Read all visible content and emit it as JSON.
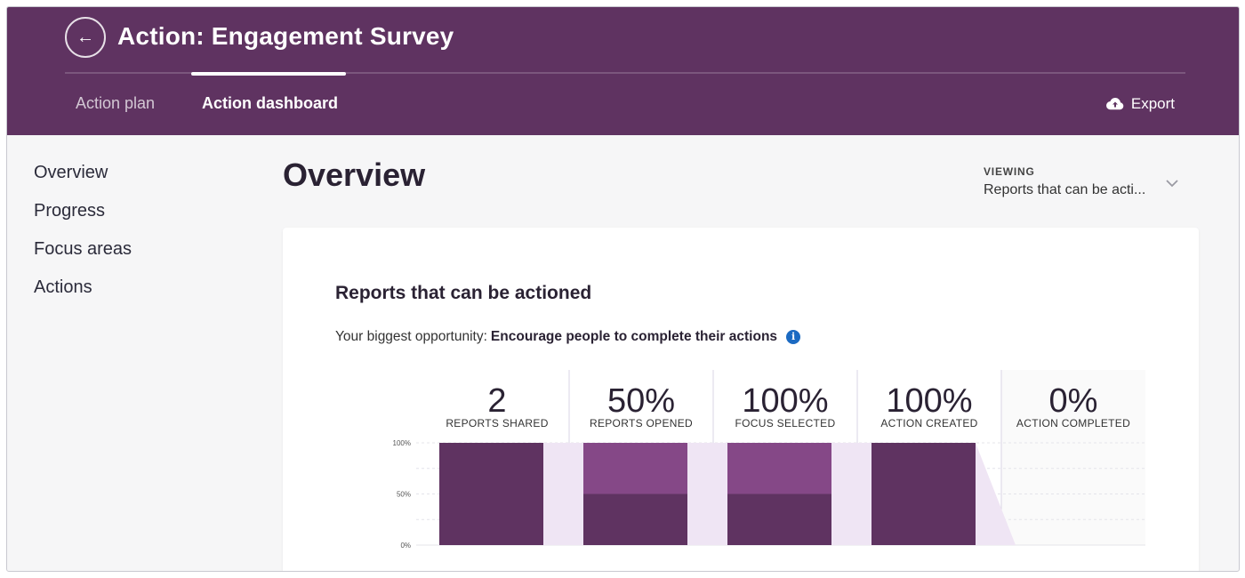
{
  "header": {
    "title": "Action: Engagement Survey",
    "tabs": [
      {
        "label": "Action plan",
        "active": false
      },
      {
        "label": "Action dashboard",
        "active": true
      }
    ],
    "export_label": "Export"
  },
  "sidebar": {
    "items": [
      {
        "label": "Overview"
      },
      {
        "label": "Progress"
      },
      {
        "label": "Focus areas"
      },
      {
        "label": "Actions"
      }
    ]
  },
  "main": {
    "page_title": "Overview",
    "viewing": {
      "label": "VIEWING",
      "value": "Reports that can be acti..."
    }
  },
  "card": {
    "title": "Reports that can be actioned",
    "opportunity_prefix": "Your biggest opportunity:",
    "opportunity_text": "Encourage people to complete their actions"
  },
  "colors": {
    "header": "#5f3361",
    "bar_dark": "#5f3361",
    "bar_light": "#854887",
    "funnel": "#efe5f4",
    "info": "#1b6ac2"
  },
  "chart_data": {
    "type": "bar",
    "categories": [
      "REPORTS SHARED",
      "REPORTS OPENED",
      "FOCUS SELECTED",
      "ACTION CREATED",
      "ACTION COMPLETED"
    ],
    "headline_values": [
      "2",
      "50%",
      "100%",
      "100%",
      "0%"
    ],
    "series": [
      {
        "values": [
          100,
          50,
          50,
          100,
          0
        ]
      },
      {
        "values": [
          0,
          50,
          50,
          0,
          0
        ]
      }
    ],
    "yticks": [
      "100%",
      "50%",
      "0%"
    ],
    "ylim": [
      0,
      100
    ],
    "grid": true
  }
}
